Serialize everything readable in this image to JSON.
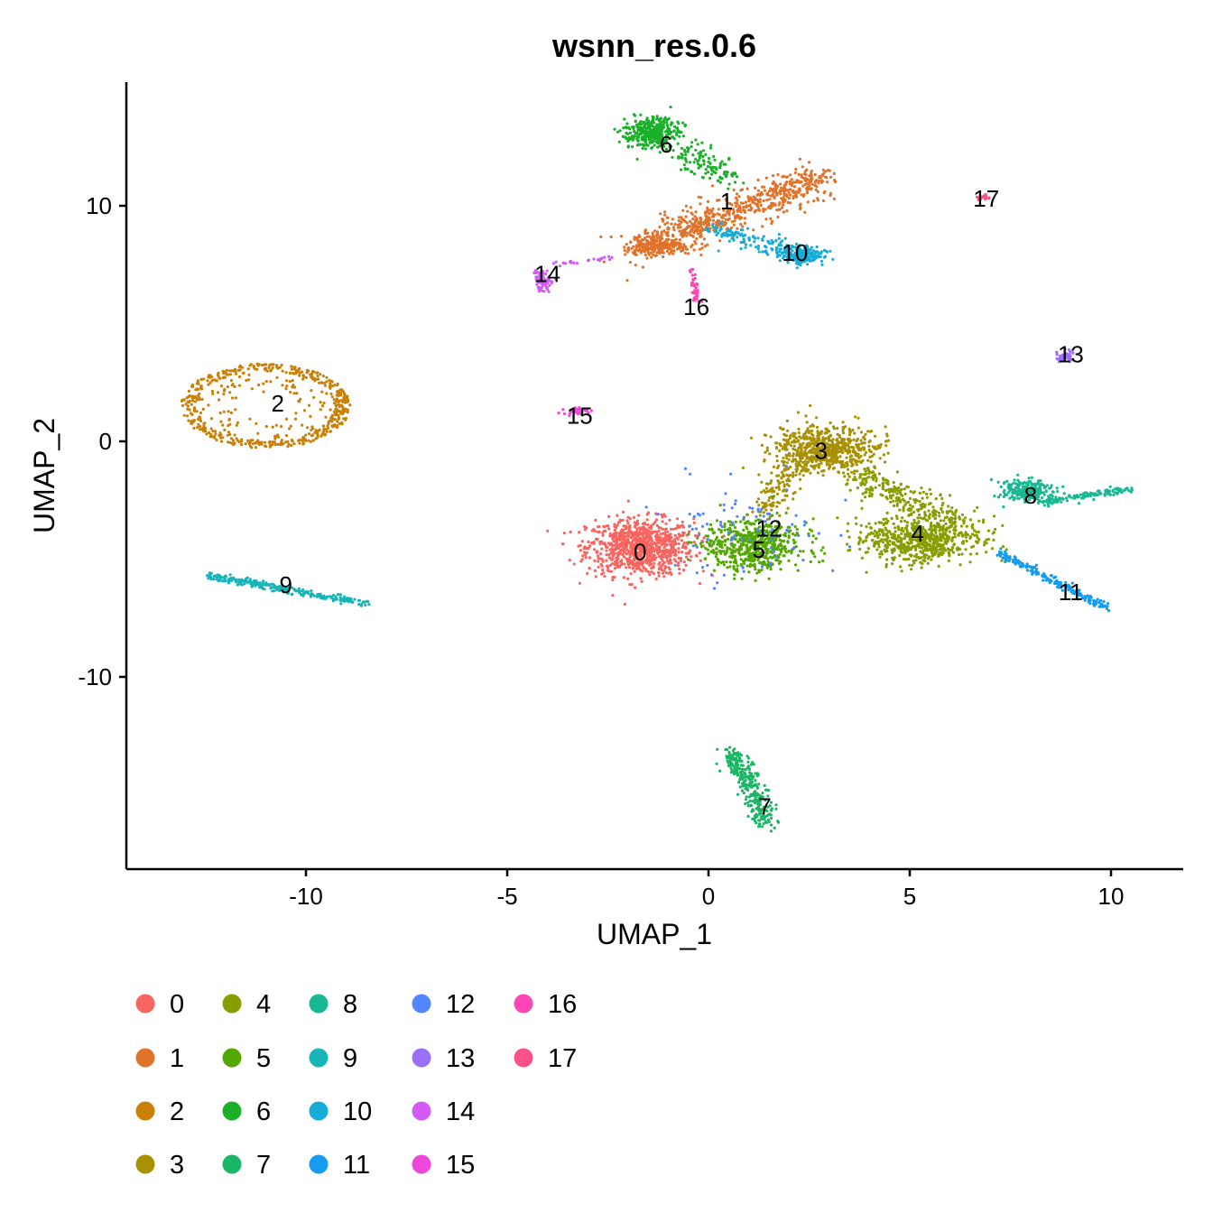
{
  "chart_data": {
    "type": "scatter",
    "title": "wsnn_res.0.6",
    "xlabel": "UMAP_1",
    "ylabel": "UMAP_2",
    "xlim": [
      -14.4,
      11.8
    ],
    "ylim": [
      -18.1,
      15.2
    ],
    "xticks": [
      -10,
      -5,
      0,
      5,
      10
    ],
    "xtick_labels": [
      "-10",
      "-5",
      "0",
      "5",
      "10"
    ],
    "yticks": [
      -10,
      0,
      10
    ],
    "ytick_labels": [
      "-10",
      "0",
      "10"
    ],
    "grid": false,
    "legend_position": "bottom",
    "clusters": [
      {
        "id": "0",
        "color": "#F8645F",
        "label_pos": [
          -1.7,
          -4.7
        ],
        "parts": [
          {
            "kind": "blob",
            "c": [
              -1.7,
              -4.5
            ],
            "s": [
              1.1,
              1.0
            ],
            "n": 900
          }
        ]
      },
      {
        "id": "1",
        "color": "#E0722A",
        "label_pos": [
          0.45,
          10.2
        ],
        "parts": [
          {
            "kind": "seg",
            "a": [
              -1.8,
              8.1
            ],
            "b": [
              2.8,
              11.2
            ],
            "w": 0.7,
            "n": 700
          },
          {
            "kind": "blob",
            "c": [
              -1.2,
              8.3
            ],
            "s": [
              0.6,
              0.3
            ],
            "n": 150
          }
        ]
      },
      {
        "id": "2",
        "color": "#C98007",
        "label_pos": [
          -10.7,
          1.6
        ],
        "parts": [
          {
            "kind": "ring",
            "c": [
              -11.0,
              1.5
            ],
            "r": [
              2.1,
              1.8
            ],
            "n": 550
          }
        ]
      },
      {
        "id": "3",
        "color": "#A89003",
        "label_pos": [
          2.8,
          -0.4
        ],
        "parts": [
          {
            "kind": "blob",
            "c": [
              2.9,
              -0.3
            ],
            "s": [
              1.1,
              0.8
            ],
            "n": 650
          },
          {
            "kind": "seg",
            "a": [
              2.2,
              -1
            ],
            "b": [
              1.3,
              -3
            ],
            "w": 0.4,
            "n": 120
          }
        ]
      },
      {
        "id": "4",
        "color": "#889D00",
        "label_pos": [
          5.2,
          -3.9
        ],
        "parts": [
          {
            "kind": "blob",
            "c": [
              5.3,
              -4.2
            ],
            "s": [
              1.2,
              0.8
            ],
            "n": 650
          },
          {
            "kind": "seg",
            "a": [
              3.6,
              -1.5
            ],
            "b": [
              6.3,
              -3.5
            ],
            "w": 0.6,
            "n": 250
          }
        ]
      },
      {
        "id": "5",
        "color": "#52A800",
        "label_pos": [
          1.25,
          -4.6
        ],
        "parts": [
          {
            "kind": "blob",
            "c": [
              1.1,
              -4.4
            ],
            "s": [
              1.0,
              0.9
            ],
            "n": 600
          }
        ]
      },
      {
        "id": "6",
        "color": "#1BB02A",
        "label_pos": [
          -1.05,
          12.6
        ],
        "parts": [
          {
            "kind": "blob",
            "c": [
              -1.4,
              13.1
            ],
            "s": [
              0.55,
              0.55
            ],
            "n": 350
          },
          {
            "kind": "seg",
            "a": [
              -0.8,
              12.4
            ],
            "b": [
              0.6,
              11.2
            ],
            "w": 0.5,
            "n": 120
          }
        ]
      },
      {
        "id": "7",
        "color": "#19B765",
        "label_pos": [
          1.4,
          -15.5
        ],
        "parts": [
          {
            "kind": "seg",
            "a": [
              0.6,
              -13.2
            ],
            "b": [
              1.5,
              -16.3
            ],
            "w": 0.35,
            "n": 300
          }
        ]
      },
      {
        "id": "8",
        "color": "#17B892",
        "label_pos": [
          8.0,
          -2.3
        ],
        "parts": [
          {
            "kind": "blob",
            "c": [
              7.9,
              -2.1
            ],
            "s": [
              0.5,
              0.4
            ],
            "n": 220
          },
          {
            "kind": "seg",
            "a": [
              8.3,
              -2.6
            ],
            "b": [
              10.5,
              -2.0
            ],
            "w": 0.15,
            "n": 120
          }
        ]
      },
      {
        "id": "9",
        "color": "#17B4B8",
        "label_pos": [
          -10.5,
          -6.1
        ],
        "parts": [
          {
            "kind": "seg",
            "a": [
              -12.4,
              -5.7
            ],
            "b": [
              -8.5,
              -6.9
            ],
            "w": 0.15,
            "n": 260
          }
        ]
      },
      {
        "id": "10",
        "color": "#16ACD8",
        "label_pos": [
          2.15,
          8.0
        ],
        "parts": [
          {
            "kind": "blob",
            "c": [
              2.3,
              7.9
            ],
            "s": [
              0.45,
              0.35
            ],
            "n": 220
          },
          {
            "kind": "seg",
            "a": [
              0.2,
              9.0
            ],
            "b": [
              1.8,
              8.2
            ],
            "w": 0.35,
            "n": 120
          }
        ]
      },
      {
        "id": "11",
        "color": "#159CF1",
        "label_pos": [
          9.0,
          -6.4
        ],
        "parts": [
          {
            "kind": "seg",
            "a": [
              7.2,
              -4.7
            ],
            "b": [
              9.9,
              -7.1
            ],
            "w": 0.15,
            "n": 200
          }
        ]
      },
      {
        "id": "12",
        "color": "#5286FF",
        "label_pos": [
          1.5,
          -3.7
        ],
        "parts": [
          {
            "kind": "blob",
            "c": [
              1.0,
              -3.8
            ],
            "s": [
              1.6,
              1.6
            ],
            "n": 90
          }
        ]
      },
      {
        "id": "13",
        "color": "#9C6FFB",
        "label_pos": [
          9.0,
          3.7
        ],
        "parts": [
          {
            "kind": "blob",
            "c": [
              8.85,
              3.6
            ],
            "s": [
              0.2,
              0.2
            ],
            "n": 60
          }
        ]
      },
      {
        "id": "14",
        "color": "#D35AF5",
        "label_pos": [
          -4.0,
          7.1
        ],
        "parts": [
          {
            "kind": "blob",
            "c": [
              -4.1,
              6.8
            ],
            "s": [
              0.2,
              0.5
            ],
            "n": 80
          },
          {
            "kind": "seg",
            "a": [
              -3.8,
              7.5
            ],
            "b": [
              -2.4,
              7.8
            ],
            "w": 0.08,
            "n": 25
          }
        ]
      },
      {
        "id": "15",
        "color": "#EF47DC",
        "label_pos": [
          -3.2,
          1.1
        ],
        "parts": [
          {
            "kind": "blob",
            "c": [
              -3.3,
              1.3
            ],
            "s": [
              0.25,
              0.12
            ],
            "n": 35
          }
        ]
      },
      {
        "id": "16",
        "color": "#FE45B5",
        "label_pos": [
          -0.3,
          5.7
        ],
        "parts": [
          {
            "kind": "seg",
            "a": [
              -0.4,
              7.4
            ],
            "b": [
              -0.3,
              5.9
            ],
            "w": 0.1,
            "n": 40
          }
        ]
      },
      {
        "id": "17",
        "color": "#FD5289",
        "label_pos": [
          6.9,
          10.3
        ],
        "parts": [
          {
            "kind": "blob",
            "c": [
              6.85,
              10.35
            ],
            "s": [
              0.12,
              0.1
            ],
            "n": 20
          }
        ]
      }
    ]
  }
}
